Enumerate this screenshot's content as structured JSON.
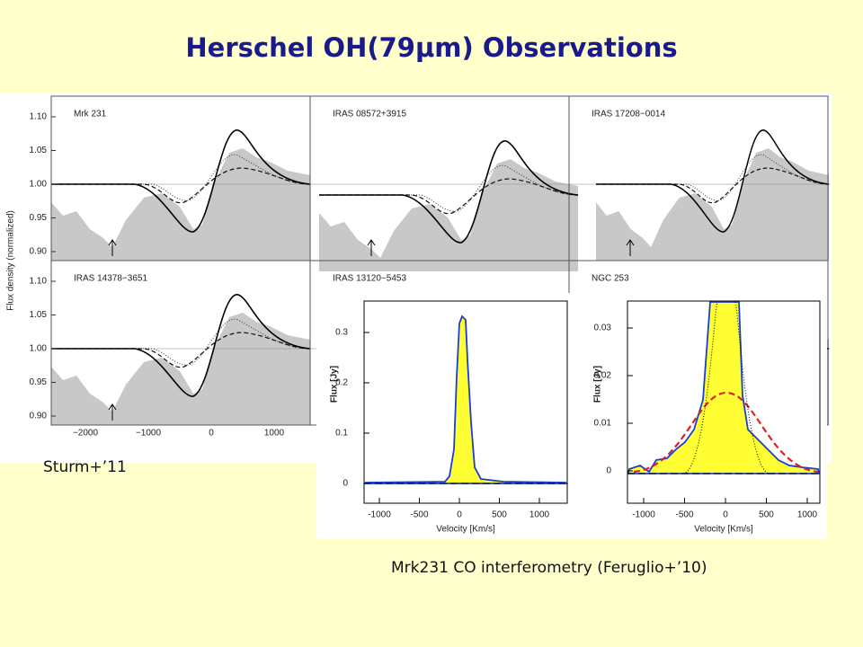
{
  "slide": {
    "title": "Herschel OH(79μm) Observations",
    "credit_left": "Sturm+’11",
    "credit_right": "Mrk231 CO interferometry (Feruglio+’10)",
    "oh_figure": {
      "ylabel": "Flux density (normalized)",
      "panels": [
        "Mrk 231",
        "IRAS 08572+3915",
        "IRAS 17208−0014",
        "IRAS 14378−3651",
        "IRAS 13120−5453",
        "NGC 253"
      ],
      "yticks": [
        "1.10",
        "1.05",
        "1.00",
        "0.95",
        "0.90"
      ],
      "xticks": [
        "−2000",
        "−1000",
        "0",
        "1000"
      ]
    },
    "co_figure": {
      "xlabel": "Velocity [Km/s]",
      "ylabel": "Flux [Jy]",
      "xticks": [
        "-1000",
        "-500",
        "0",
        "500",
        "1000"
      ],
      "left_yticks": [
        "0.3",
        "0.2",
        "0.1",
        "0"
      ],
      "right_yticks": [
        "0.03",
        "0.02",
        "0.01",
        "0"
      ]
    }
  }
}
